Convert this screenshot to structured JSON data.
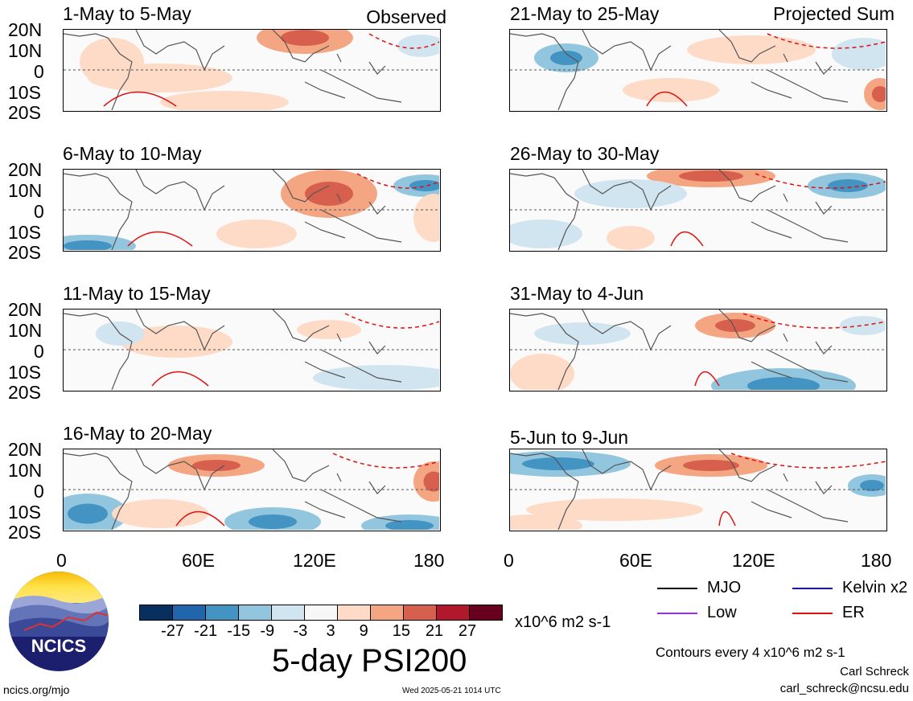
{
  "panels_left": [
    {
      "title": "1-May to 5-May",
      "tag": "Observed"
    },
    {
      "title": "6-May to 10-May",
      "tag": ""
    },
    {
      "title": "11-May to 15-May",
      "tag": ""
    },
    {
      "title": "16-May to 20-May",
      "tag": ""
    }
  ],
  "panels_right": [
    {
      "title": "21-May to 25-May",
      "tag": "Projected Sum"
    },
    {
      "title": "26-May to 30-May",
      "tag": ""
    },
    {
      "title": "31-May to 4-Jun",
      "tag": ""
    },
    {
      "title": "5-Jun to 9-Jun",
      "tag": ""
    }
  ],
  "lat_labels": [
    "20N",
    "10N",
    "0",
    "10S",
    "20S"
  ],
  "lon_labels": [
    "0",
    "60E",
    "120E",
    "180"
  ],
  "colorbar": {
    "colors": [
      "#08305e",
      "#2166ac",
      "#4393c3",
      "#92c5de",
      "#d1e5f0",
      "#f7f7f7",
      "#fddbc7",
      "#f4a582",
      "#d6604d",
      "#b2182b",
      "#67001f"
    ],
    "ticks": [
      "-27",
      "-21",
      "-15",
      "-9",
      "-3",
      "3",
      "9",
      "15",
      "21",
      "27"
    ],
    "units": "x10^6 m2 s-1"
  },
  "title": "5-day PSI200",
  "legend": [
    {
      "label": "MJO",
      "color": "#000000"
    },
    {
      "label": "Kelvin x2",
      "color": "#1010e0"
    },
    {
      "label": "Low",
      "color": "#9b30d9"
    },
    {
      "label": "ER",
      "color": "#e01010"
    }
  ],
  "contour_note": "Contours every 4 x10^6 m2 s-1",
  "author": "Carl Schreck",
  "email": "carl_schreck@ncsu.edu",
  "site": "ncics.org/mjo",
  "timestamp": "Wed 2025-05-21 1014 UTC",
  "logo_text": "NCICS"
}
